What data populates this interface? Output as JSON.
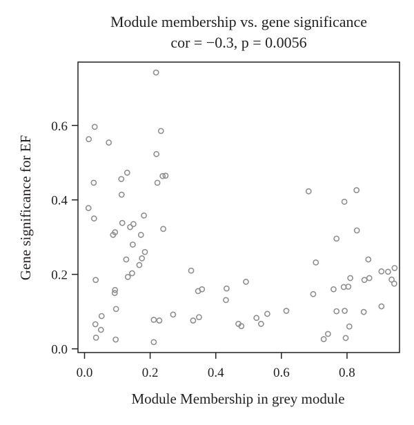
{
  "chart_data": {
    "type": "scatter",
    "title": "Module membership vs. gene significance",
    "subtitle": "cor = −0.3, p = 0.0056",
    "xlabel": "Module Membership in grey module",
    "ylabel": "Gene significance for EF",
    "xlim": [
      -0.02,
      0.96
    ],
    "ylim": [
      -0.01,
      0.77
    ],
    "xticks": [
      0.0,
      0.2,
      0.4,
      0.6,
      0.8
    ],
    "xtick_labels": [
      "0.0",
      "0.2",
      "0.4",
      "0.6",
      "0.8"
    ],
    "yticks": [
      0.0,
      0.2,
      0.4,
      0.6
    ],
    "ytick_labels": [
      "0.0",
      "0.2",
      "0.4",
      "0.6"
    ],
    "grid": false,
    "point_color": "#8f8f8f",
    "points": [
      [
        0.013,
        0.563
      ],
      [
        0.012,
        0.378
      ],
      [
        0.031,
        0.596
      ],
      [
        0.028,
        0.446
      ],
      [
        0.029,
        0.35
      ],
      [
        0.034,
        0.185
      ],
      [
        0.033,
        0.066
      ],
      [
        0.035,
        0.03
      ],
      [
        0.05,
        0.051
      ],
      [
        0.052,
        0.088
      ],
      [
        0.074,
        0.554
      ],
      [
        0.087,
        0.306
      ],
      [
        0.093,
        0.313
      ],
      [
        0.093,
        0.158
      ],
      [
        0.092,
        0.15
      ],
      [
        0.096,
        0.107
      ],
      [
        0.095,
        0.025
      ],
      [
        0.112,
        0.456
      ],
      [
        0.113,
        0.414
      ],
      [
        0.115,
        0.338
      ],
      [
        0.127,
        0.24
      ],
      [
        0.13,
        0.473
      ],
      [
        0.132,
        0.193
      ],
      [
        0.139,
        0.327
      ],
      [
        0.145,
        0.203
      ],
      [
        0.147,
        0.28
      ],
      [
        0.149,
        0.335
      ],
      [
        0.167,
        0.225
      ],
      [
        0.172,
        0.306
      ],
      [
        0.175,
        0.243
      ],
      [
        0.181,
        0.358
      ],
      [
        0.184,
        0.26
      ],
      [
        0.211,
        0.078
      ],
      [
        0.211,
        0.018
      ],
      [
        0.218,
        0.742
      ],
      [
        0.219,
        0.523
      ],
      [
        0.222,
        0.446
      ],
      [
        0.228,
        0.076
      ],
      [
        0.233,
        0.585
      ],
      [
        0.238,
        0.464
      ],
      [
        0.24,
        0.322
      ],
      [
        0.247,
        0.465
      ],
      [
        0.27,
        0.092
      ],
      [
        0.325,
        0.21
      ],
      [
        0.331,
        0.076
      ],
      [
        0.346,
        0.155
      ],
      [
        0.349,
        0.085
      ],
      [
        0.358,
        0.16
      ],
      [
        0.431,
        0.131
      ],
      [
        0.433,
        0.162
      ],
      [
        0.469,
        0.067
      ],
      [
        0.478,
        0.061
      ],
      [
        0.492,
        0.18
      ],
      [
        0.524,
        0.083
      ],
      [
        0.538,
        0.067
      ],
      [
        0.557,
        0.094
      ],
      [
        0.615,
        0.102
      ],
      [
        0.683,
        0.423
      ],
      [
        0.697,
        0.147
      ],
      [
        0.705,
        0.232
      ],
      [
        0.729,
        0.026
      ],
      [
        0.742,
        0.04
      ],
      [
        0.759,
        0.16
      ],
      [
        0.768,
        0.101
      ],
      [
        0.768,
        0.296
      ],
      [
        0.79,
        0.166
      ],
      [
        0.792,
        0.395
      ],
      [
        0.793,
        0.102
      ],
      [
        0.796,
        0.029
      ],
      [
        0.804,
        0.167
      ],
      [
        0.807,
        0.06
      ],
      [
        0.81,
        0.19
      ],
      [
        0.829,
        0.426
      ],
      [
        0.83,
        0.318
      ],
      [
        0.851,
        0.099
      ],
      [
        0.853,
        0.185
      ],
      [
        0.865,
        0.24
      ],
      [
        0.868,
        0.19
      ],
      [
        0.905,
        0.114
      ],
      [
        0.905,
        0.208
      ],
      [
        0.925,
        0.207
      ],
      [
        0.936,
        0.186
      ],
      [
        0.945,
        0.217
      ],
      [
        0.944,
        0.175
      ]
    ]
  }
}
